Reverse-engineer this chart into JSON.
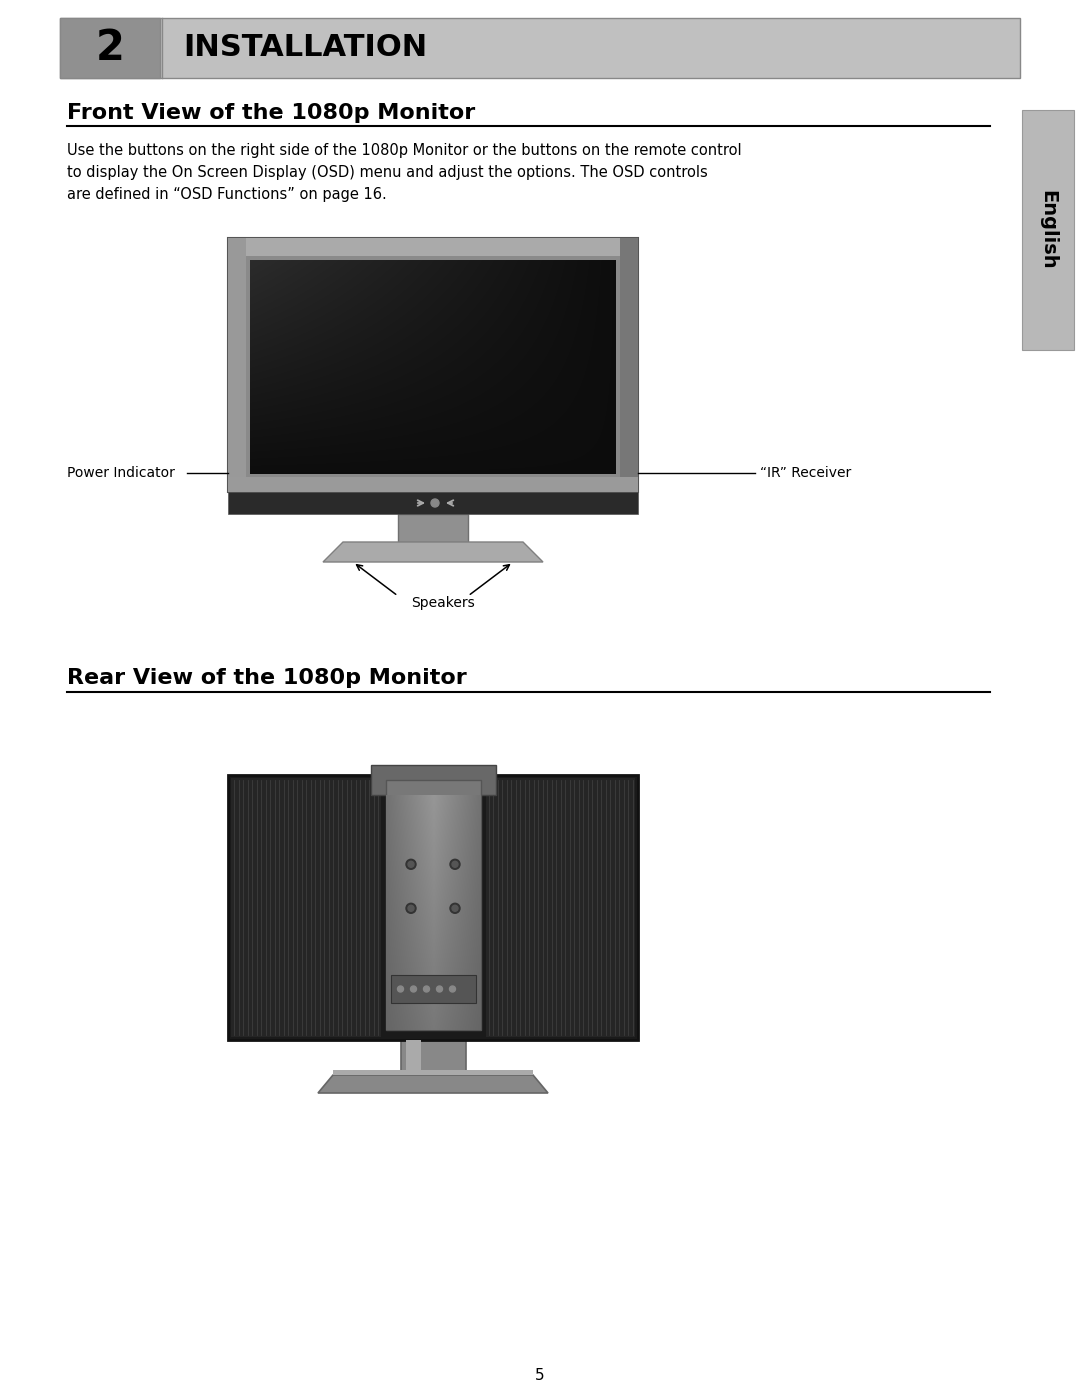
{
  "page_bg": "#ffffff",
  "header_bg": "#c0c0c0",
  "header_num": "2",
  "header_title": "INSTALLATION",
  "header_num_bg": "#909090",
  "section1_title": "Front View of the 1080p Monitor",
  "section1_body": "Use the buttons on the right side of the 1080p Monitor or the buttons on the remote control\nto display the On Screen Display (OSD) menu and adjust the options. The OSD controls\nare defined in “OSD Functions” on page 16.",
  "label_power": "Power Indicator",
  "label_ir": "“IR” Receiver",
  "label_speakers": "Speakers",
  "section2_title": "Rear View of the 1080p Monitor",
  "page_number": "5",
  "english_tab_bg": "#b8b8b8",
  "english_tab_text": "English"
}
